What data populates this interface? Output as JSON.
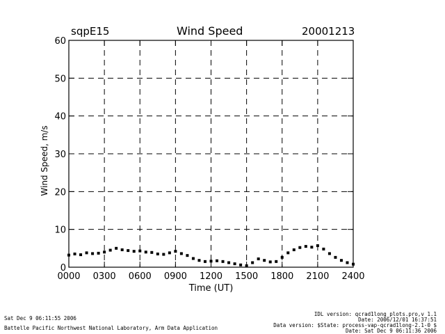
{
  "header": {
    "left": "sqpE15",
    "title": "Wind Speed",
    "right": "20001213"
  },
  "footer": {
    "left_line1": "Sat Dec  9 06:11:55 2006",
    "left_line2": "Battelle Pacific Northwest National Laboratory, Arm Data Application",
    "right_lines": [
      "IDL version: qcrad1long_plots.pro,v 1.1",
      "Date: 2006/12/01 16:37:51",
      "Data version: $State: process-vap-qcrad1long-2.1-0 $",
      "Date: Sat Dec  9 06:11:36 2006"
    ]
  },
  "chart_data": {
    "type": "scatter",
    "title": "Wind Speed",
    "xlabel": "Time (UT)",
    "ylabel": "Wind Speed, m/s",
    "xlim": [
      0,
      24
    ],
    "ylim": [
      0,
      60
    ],
    "x_ticks": [
      0,
      3,
      6,
      9,
      12,
      15,
      18,
      21,
      24
    ],
    "x_tick_labels": [
      "0000",
      "0300",
      "0600",
      "0900",
      "1200",
      "1500",
      "1800",
      "2100",
      "2400"
    ],
    "y_ticks": [
      0,
      10,
      20,
      30,
      40,
      50,
      60
    ],
    "y_tick_labels": [
      "0",
      "10",
      "20",
      "30",
      "40",
      "50",
      "60"
    ],
    "grid": "dashed",
    "marker_color": "#000000",
    "series": [
      {
        "x": [
          0.0,
          0.5,
          1.0,
          1.5,
          2.0,
          2.5,
          3.0,
          3.5,
          4.0,
          4.5,
          5.0,
          5.5,
          6.0,
          6.5,
          7.0,
          7.5,
          8.0,
          8.5,
          9.0,
          9.5,
          10.0,
          10.5,
          11.0,
          11.5,
          12.0,
          12.5,
          13.0,
          13.5,
          14.0,
          14.5,
          15.0,
          15.5,
          16.0,
          16.5,
          17.0,
          17.5,
          18.0,
          18.5,
          19.0,
          19.5,
          20.0,
          20.5,
          21.0,
          21.5,
          22.0,
          22.5,
          23.0,
          23.5,
          24.0
        ],
        "values": [
          3.2,
          3.5,
          3.3,
          3.8,
          3.6,
          3.7,
          4.0,
          4.5,
          5.0,
          4.6,
          4.4,
          4.2,
          4.3,
          4.0,
          3.9,
          3.5,
          3.4,
          3.8,
          4.2,
          3.6,
          3.1,
          2.3,
          1.8,
          1.5,
          1.6,
          1.7,
          1.5,
          1.2,
          0.9,
          0.6,
          0.4,
          1.2,
          2.2,
          1.8,
          1.4,
          1.5,
          2.6,
          3.8,
          4.6,
          5.2,
          5.5,
          5.3,
          5.7,
          4.8,
          3.6,
          2.6,
          1.8,
          1.2,
          0.8
        ]
      }
    ]
  }
}
